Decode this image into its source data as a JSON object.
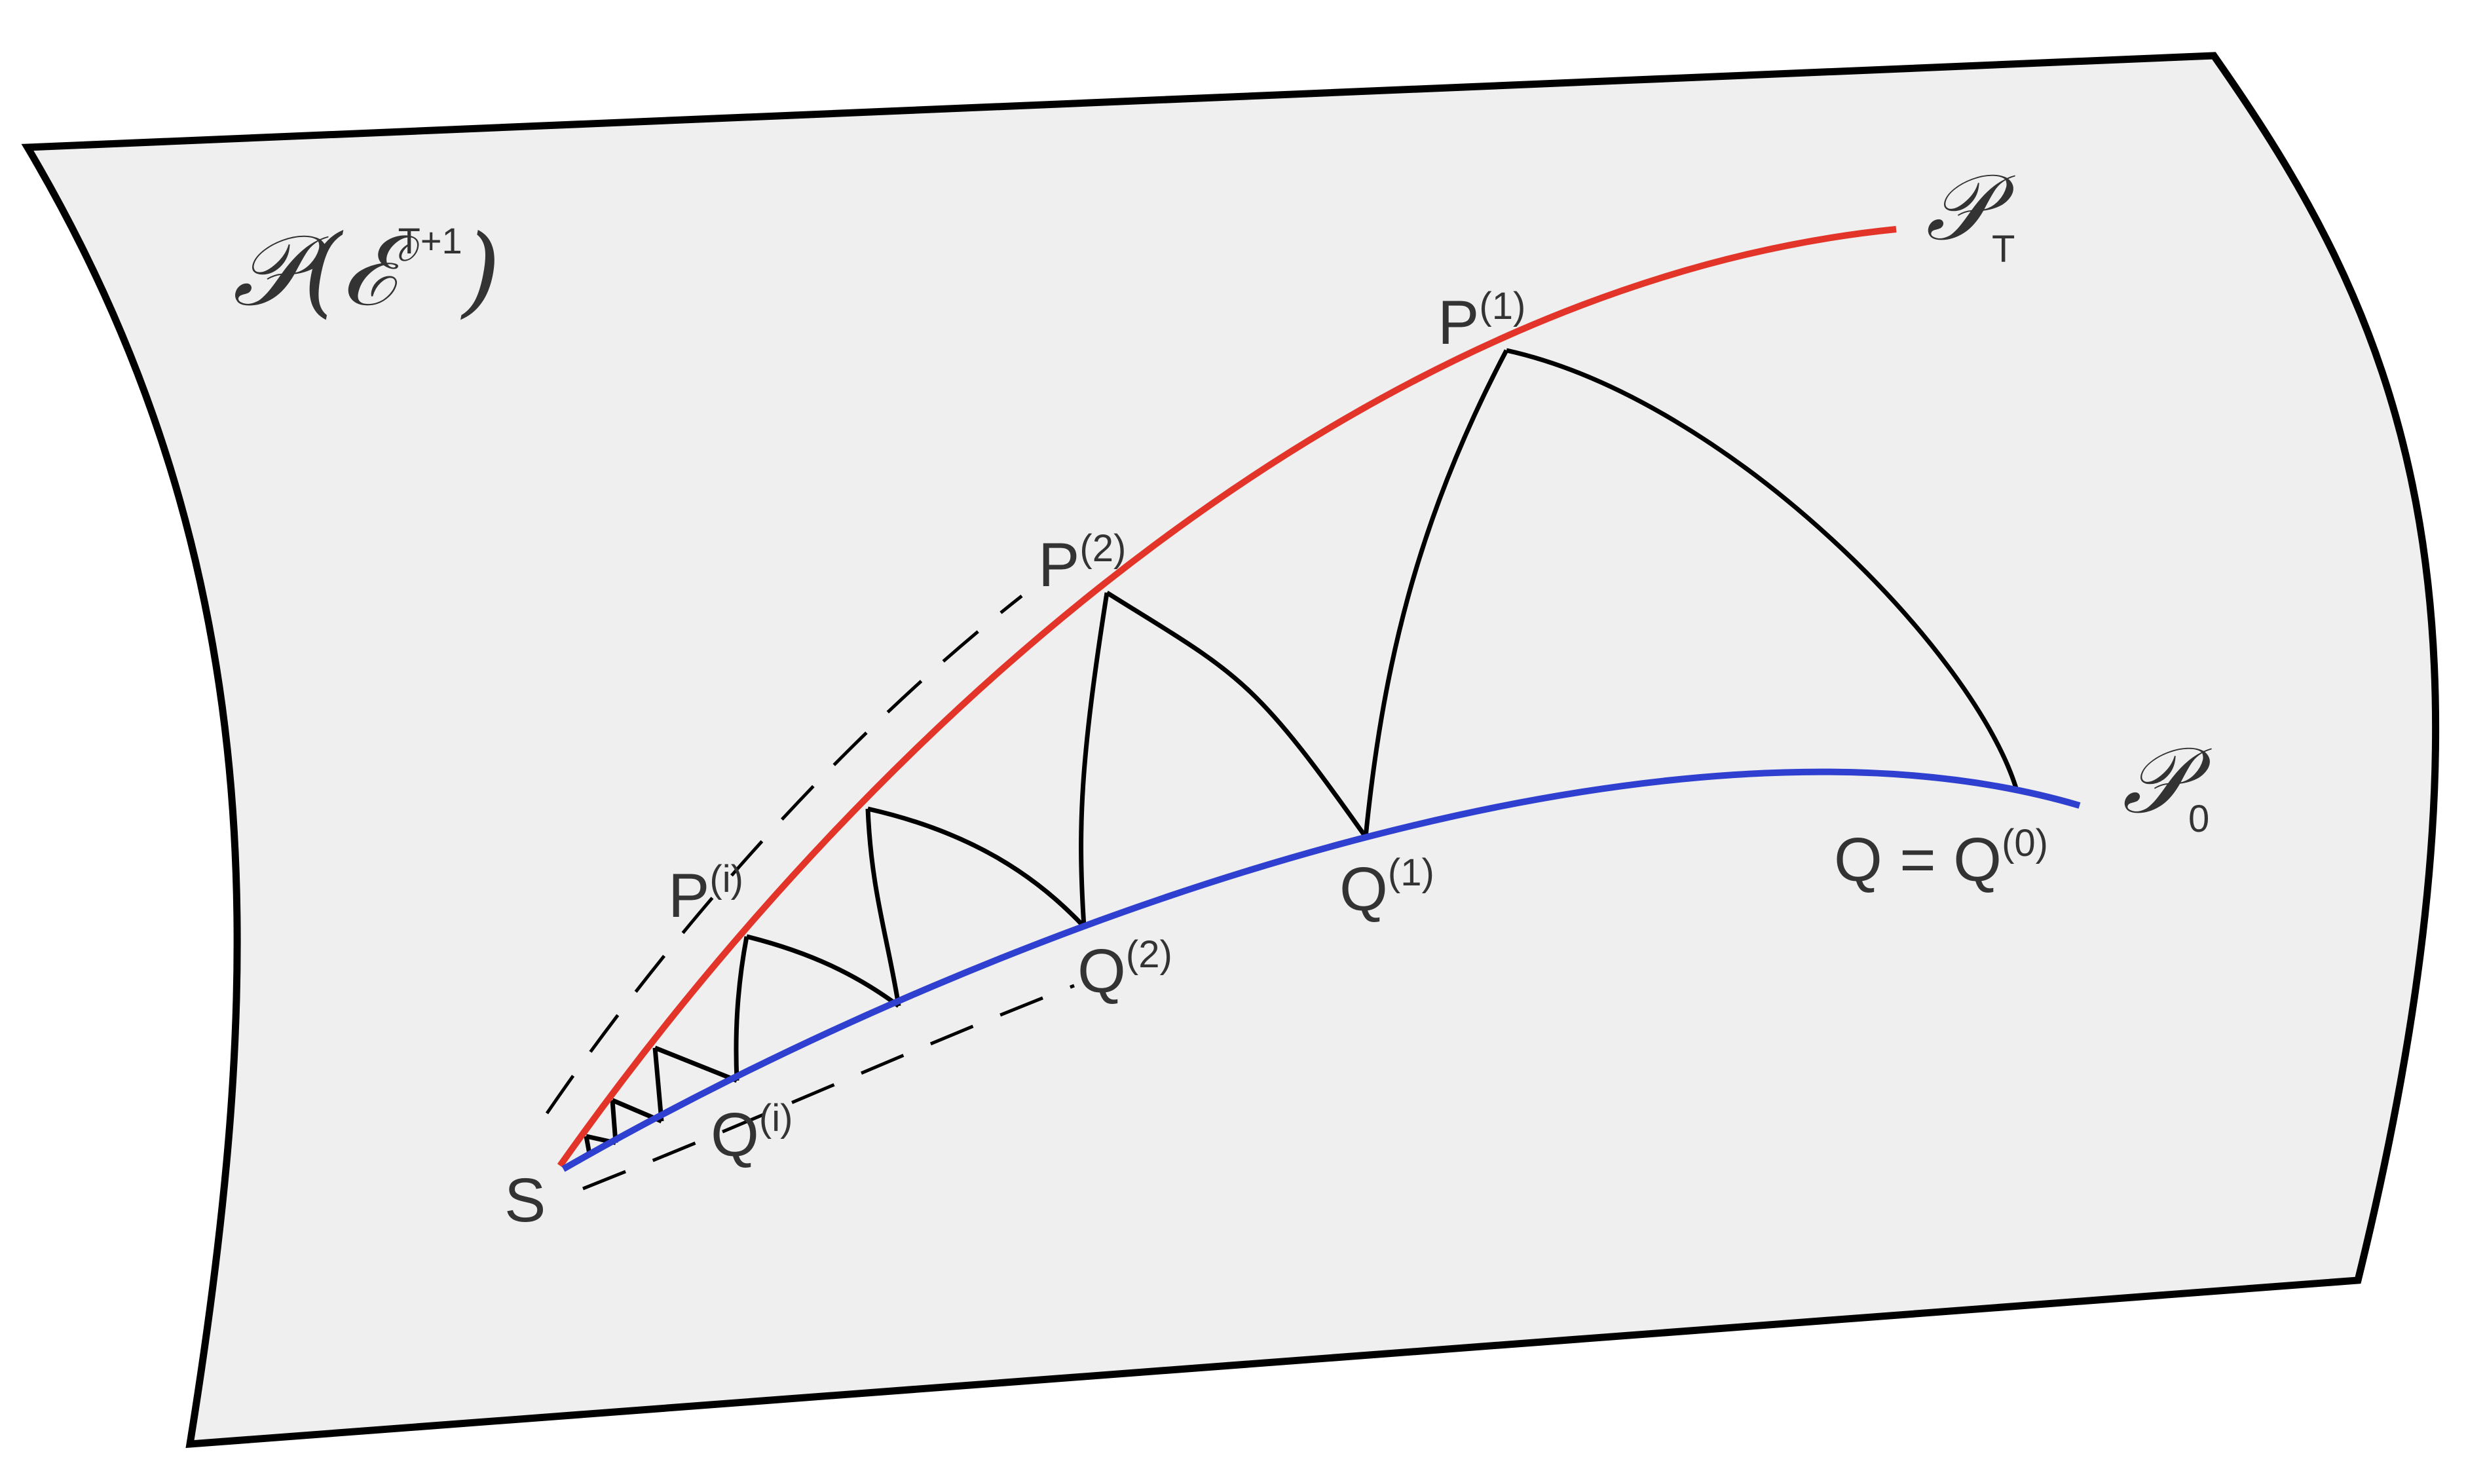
{
  "colors": {
    "background": "#ffffff",
    "manifold_fill": "#efefef",
    "manifold_stroke": "#000000",
    "curve_T": "#e3342a",
    "curve_0": "#2f3fcf",
    "lines": "#000000",
    "text": "#333333"
  },
  "labels": {
    "space": {
      "main": "𝒫(ℰ",
      "sup": "T+1",
      "close": ")"
    },
    "curve_T": {
      "main": "𝒫",
      "sub": "T"
    },
    "curve_0": {
      "main": "𝒫",
      "sub": "0"
    },
    "S": "S",
    "P1": {
      "main": "P",
      "sup": "(1)"
    },
    "P2": {
      "main": "P",
      "sup": "(2)"
    },
    "Pi": {
      "main": "P",
      "sup": "(i)"
    },
    "Q1": {
      "main": "Q",
      "sup": "(1)"
    },
    "Q2": {
      "main": "Q",
      "sup": "(2)"
    },
    "Qi": {
      "main": "Q",
      "sup": "(i)"
    },
    "Q0": {
      "main": "Q = Q",
      "sup": "(0)"
    }
  }
}
